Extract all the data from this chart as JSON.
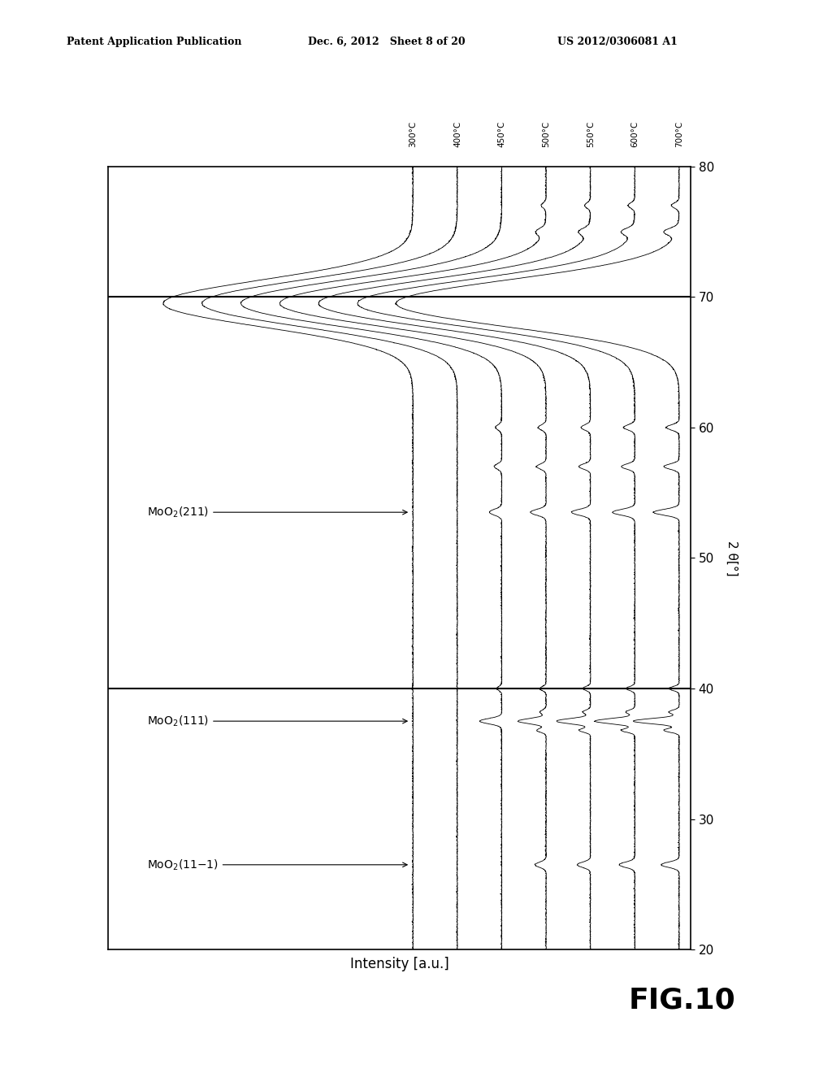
{
  "header_left": "Patent Application Publication",
  "header_mid": "Dec. 6, 2012   Sheet 8 of 20",
  "header_right": "US 2012/0306081 A1",
  "fig_label": "FIG.10",
  "xlabel": "Intensity [a.u.]",
  "ylabel": "2 θ[°]",
  "theta_min": 20,
  "theta_max": 80,
  "temperatures": [
    "700°C",
    "600°C",
    "550°C",
    "500°C",
    "450°C",
    "400°C",
    "300°C"
  ],
  "background_color": "#ffffff",
  "line_color": "#000000",
  "peak211_theta": 53.5,
  "peak111_theta": 37.5,
  "peak11m1_theta": 26.5,
  "substrate_theta": 69.5,
  "divider_thetas": [
    40.0,
    70.0
  ]
}
